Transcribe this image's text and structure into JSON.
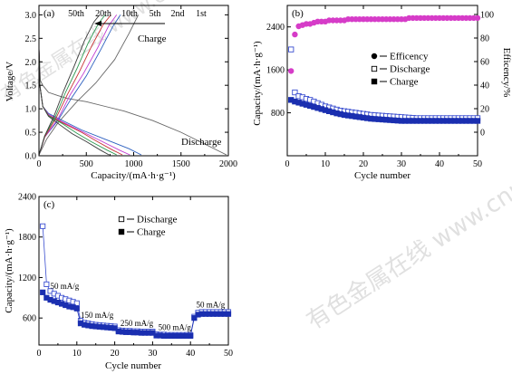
{
  "watermarks": [
    "有色金属在线 www.cnnmol.com",
    "有色金属在线 www.cnnmol.com"
  ],
  "chart_data": [
    {
      "id": "a",
      "panel_label": "(a)",
      "type": "line",
      "xlabel": "Capacity/(mA·h·g⁻¹)",
      "ylabel": "Voltage/V",
      "xlim": [
        0,
        2000
      ],
      "ylim": [
        0,
        3.2
      ],
      "xticks": [
        0,
        500,
        1000,
        1500,
        2000
      ],
      "yticks": [
        0,
        0.5,
        1.0,
        1.5,
        2.0,
        2.5,
        3.0
      ],
      "cycle_labels": [
        "50th",
        "20th",
        "10th",
        "5th",
        "2nd",
        "1st"
      ],
      "annotations": [
        "Charge",
        "Discharge"
      ],
      "series": [
        {
          "color": "#666666",
          "discharge": [
            [
              0,
              2.3
            ],
            [
              15,
              1.6
            ],
            [
              40,
              1.5
            ],
            [
              100,
              1.35
            ],
            [
              200,
              1.28
            ],
            [
              300,
              1.22
            ],
            [
              500,
              1.15
            ],
            [
              700,
              1.05
            ],
            [
              900,
              0.95
            ],
            [
              1200,
              0.75
            ],
            [
              1500,
              0.5
            ],
            [
              1800,
              0.2
            ],
            [
              1980,
              0.02
            ]
          ],
          "charge": [
            [
              0,
              0.02
            ],
            [
              80,
              0.35
            ],
            [
              200,
              0.7
            ],
            [
              400,
              1.15
            ],
            [
              600,
              1.55
            ],
            [
              800,
              2.05
            ],
            [
              950,
              2.6
            ],
            [
              1050,
              3.0
            ]
          ]
        },
        {
          "color": "#2b5fbf",
          "discharge": [
            [
              0,
              2.3
            ],
            [
              10,
              1.5
            ],
            [
              40,
              1.05
            ],
            [
              100,
              0.9
            ],
            [
              250,
              0.75
            ],
            [
              450,
              0.55
            ],
            [
              700,
              0.35
            ],
            [
              950,
              0.15
            ],
            [
              1080,
              0.02
            ]
          ],
          "charge": [
            [
              0,
              0.02
            ],
            [
              60,
              0.4
            ],
            [
              200,
              0.75
            ],
            [
              350,
              1.25
            ],
            [
              500,
              1.7
            ],
            [
              650,
              2.25
            ],
            [
              780,
              2.75
            ],
            [
              860,
              3.0
            ]
          ]
        },
        {
          "color": "#c03ad0",
          "discharge": [
            [
              0,
              2.3
            ],
            [
              10,
              1.5
            ],
            [
              40,
              1.05
            ],
            [
              100,
              0.88
            ],
            [
              250,
              0.72
            ],
            [
              450,
              0.52
            ],
            [
              650,
              0.32
            ],
            [
              850,
              0.12
            ],
            [
              960,
              0.02
            ]
          ],
          "charge": [
            [
              0,
              0.02
            ],
            [
              60,
              0.4
            ],
            [
              200,
              0.78
            ],
            [
              330,
              1.3
            ],
            [
              470,
              1.75
            ],
            [
              620,
              2.3
            ],
            [
              740,
              2.78
            ],
            [
              820,
              3.0
            ]
          ]
        },
        {
          "color": "#c83232",
          "discharge": [
            [
              0,
              2.3
            ],
            [
              10,
              1.5
            ],
            [
              40,
              1.05
            ],
            [
              100,
              0.86
            ],
            [
              250,
              0.7
            ],
            [
              450,
              0.5
            ],
            [
              600,
              0.32
            ],
            [
              780,
              0.12
            ],
            [
              880,
              0.02
            ]
          ],
          "charge": [
            [
              0,
              0.02
            ],
            [
              60,
              0.4
            ],
            [
              180,
              0.8
            ],
            [
              300,
              1.3
            ],
            [
              430,
              1.8
            ],
            [
              560,
              2.35
            ],
            [
              680,
              2.8
            ],
            [
              760,
              3.0
            ]
          ]
        },
        {
          "color": "#2e9a52",
          "discharge": [
            [
              0,
              2.3
            ],
            [
              10,
              1.5
            ],
            [
              40,
              1.05
            ],
            [
              100,
              0.85
            ],
            [
              250,
              0.68
            ],
            [
              400,
              0.48
            ],
            [
              550,
              0.3
            ],
            [
              720,
              0.12
            ],
            [
              820,
              0.02
            ]
          ],
          "charge": [
            [
              0,
              0.02
            ],
            [
              60,
              0.42
            ],
            [
              170,
              0.82
            ],
            [
              280,
              1.35
            ],
            [
              400,
              1.85
            ],
            [
              520,
              2.4
            ],
            [
              630,
              2.82
            ],
            [
              700,
              3.0
            ]
          ]
        },
        {
          "color": "#3a3a3a",
          "discharge": [
            [
              0,
              2.3
            ],
            [
              10,
              1.5
            ],
            [
              40,
              1.05
            ],
            [
              100,
              0.84
            ],
            [
              220,
              0.66
            ],
            [
              350,
              0.47
            ],
            [
              500,
              0.3
            ],
            [
              650,
              0.12
            ],
            [
              740,
              0.02
            ]
          ],
          "charge": [
            [
              0,
              0.02
            ],
            [
              60,
              0.42
            ],
            [
              160,
              0.85
            ],
            [
              260,
              1.38
            ],
            [
              370,
              1.9
            ],
            [
              480,
              2.45
            ],
            [
              580,
              2.85
            ],
            [
              640,
              3.0
            ]
          ]
        }
      ]
    },
    {
      "id": "b",
      "panel_label": "(b)",
      "type": "scatter",
      "xlabel": "Cycle number",
      "ylabel": "Capacity/(mA·h·g⁻¹)",
      "ylabel_right": "Efficency/%",
      "xlim": [
        0,
        50
      ],
      "ylim": [
        0,
        2800
      ],
      "ylim_right": [
        -20,
        100
      ],
      "xticks": [
        0,
        10,
        20,
        30,
        40,
        50
      ],
      "yticks": [
        800,
        1600,
        2400
      ],
      "yticks_right": [
        0,
        20,
        40,
        60,
        80,
        100
      ],
      "legend": [
        "Efficency",
        "Discharge",
        "Charge"
      ],
      "legend_position": "right",
      "series": [
        {
          "name": "Efficency",
          "marker": "filled-circle",
          "color": "#d63cc8",
          "axis": "right",
          "values": [
            52,
            83,
            90,
            91,
            92,
            92,
            93,
            94,
            94,
            94,
            95,
            95,
            95,
            95,
            95,
            96,
            96,
            96,
            96,
            96,
            96,
            96,
            96,
            96,
            96,
            96,
            96,
            96,
            96,
            96,
            96,
            97,
            97,
            97,
            97,
            97,
            97,
            97,
            97,
            97,
            97,
            97,
            97,
            97,
            97,
            97,
            97,
            97,
            97,
            97
          ]
        },
        {
          "name": "Discharge",
          "marker": "open-square",
          "color": "#3a4ed0",
          "axis": "left",
          "values": [
            1980,
            1180,
            1110,
            1090,
            1060,
            1040,
            1010,
            980,
            950,
            920,
            900,
            880,
            860,
            840,
            830,
            820,
            810,
            800,
            790,
            780,
            770,
            760,
            755,
            750,
            745,
            740,
            735,
            730,
            725,
            720,
            715,
            710,
            705,
            700,
            700,
            700,
            700,
            700,
            700,
            700,
            700,
            700,
            700,
            700,
            700,
            700,
            700,
            700,
            700,
            700
          ]
        },
        {
          "name": "Charge",
          "marker": "filled-square",
          "color": "#1a2fb0",
          "axis": "left",
          "values": [
            1040,
            1010,
            990,
            970,
            950,
            930,
            910,
            890,
            870,
            850,
            830,
            810,
            790,
            775,
            760,
            750,
            740,
            730,
            720,
            710,
            700,
            690,
            685,
            680,
            675,
            670,
            665,
            660,
            655,
            650,
            650,
            650,
            650,
            650,
            650,
            650,
            650,
            650,
            650,
            650,
            650,
            650,
            650,
            650,
            650,
            650,
            650,
            650,
            650,
            650
          ]
        }
      ]
    },
    {
      "id": "c",
      "panel_label": "(c)",
      "type": "scatter",
      "xlabel": "Cycle number",
      "ylabel": "Capacity/(mA·h·g⁻¹)",
      "xlim": [
        0,
        50
      ],
      "ylim": [
        200,
        2400
      ],
      "xticks": [
        0,
        10,
        20,
        30,
        40,
        50
      ],
      "yticks": [
        600,
        1200,
        1800,
        2400
      ],
      "legend": [
        "Discharge",
        "Charge"
      ],
      "legend_position": "top-left",
      "annotations": [
        {
          "text": "50 mA/g",
          "x": 3,
          "y": 1030
        },
        {
          "text": "150 mA/g",
          "x": 11,
          "y": 600
        },
        {
          "text": "250 mA/g",
          "x": 21.5,
          "y": 480
        },
        {
          "text": "500 mA/g",
          "x": 31.5,
          "y": 420
        },
        {
          "text": "50 mA/g",
          "x": 41.5,
          "y": 760
        }
      ],
      "series": [
        {
          "name": "Discharge",
          "marker": "open-square",
          "color": "#3a4ed0",
          "values": [
            1960,
            1100,
            1000,
            960,
            930,
            900,
            880,
            860,
            840,
            820,
            560,
            530,
            520,
            510,
            500,
            495,
            490,
            485,
            480,
            475,
            420,
            415,
            410,
            410,
            405,
            405,
            400,
            400,
            400,
            400,
            360,
            355,
            355,
            350,
            350,
            350,
            350,
            350,
            350,
            350,
            620,
            680,
            690,
            690,
            690,
            690,
            690,
            690,
            690,
            690
          ]
        },
        {
          "name": "Charge",
          "marker": "filled-square",
          "color": "#1a2fb0",
          "values": [
            980,
            900,
            870,
            850,
            830,
            810,
            790,
            770,
            760,
            740,
            520,
            500,
            490,
            480,
            475,
            470,
            465,
            460,
            455,
            450,
            400,
            395,
            390,
            390,
            385,
            385,
            380,
            380,
            380,
            380,
            340,
            340,
            335,
            335,
            335,
            335,
            335,
            335,
            335,
            335,
            600,
            650,
            660,
            660,
            660,
            660,
            660,
            660,
            660,
            660
          ]
        }
      ]
    }
  ]
}
